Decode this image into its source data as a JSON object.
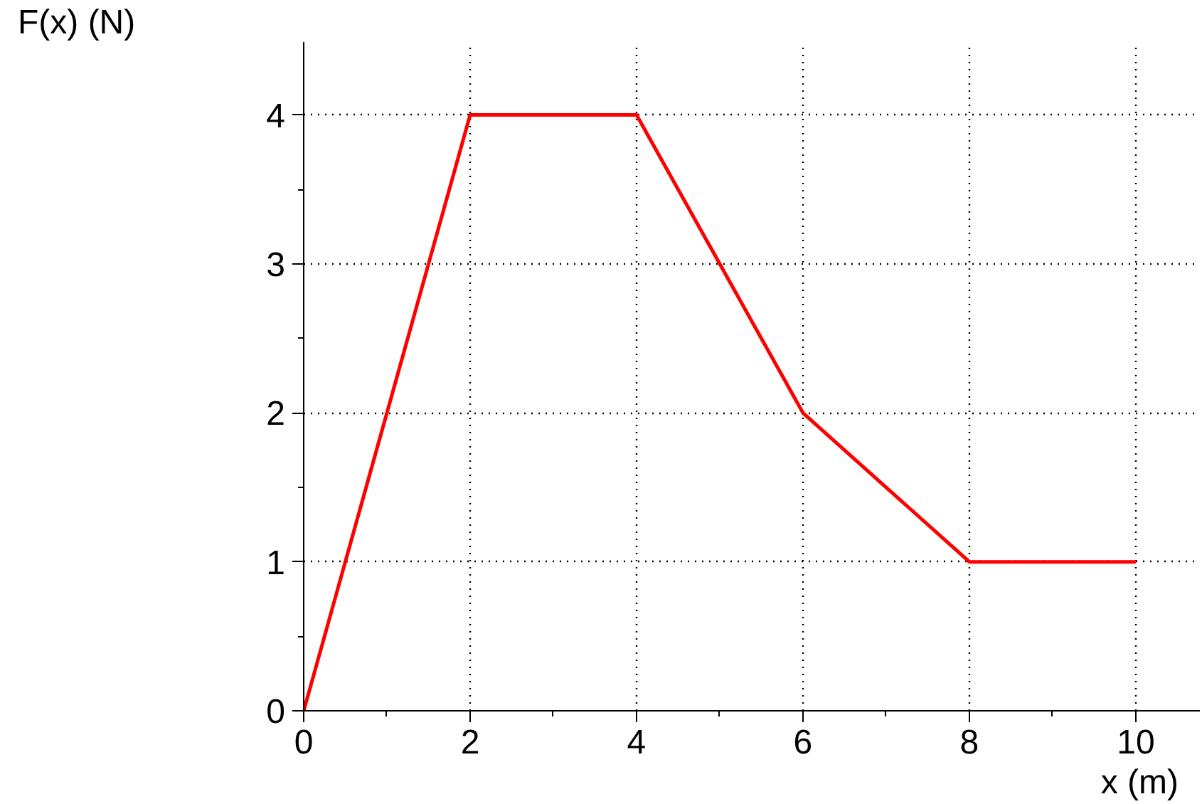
{
  "chart_data": {
    "type": "line",
    "xlabel": "x (m)",
    "ylabel": "F(x) (N)",
    "x": [
      0,
      2,
      4,
      6,
      8,
      10
    ],
    "series": [
      {
        "color": "#ff0000",
        "values": [
          0,
          4,
          4,
          2,
          1,
          1
        ]
      }
    ],
    "xlim": [
      0,
      10.77
    ],
    "ylim": [
      0,
      4.49
    ],
    "xticks": [
      0,
      2,
      4,
      6,
      8,
      10
    ],
    "yticks": [
      0,
      1,
      2,
      3,
      4
    ],
    "grid": true,
    "marker": "none",
    "line_style": "solid"
  }
}
